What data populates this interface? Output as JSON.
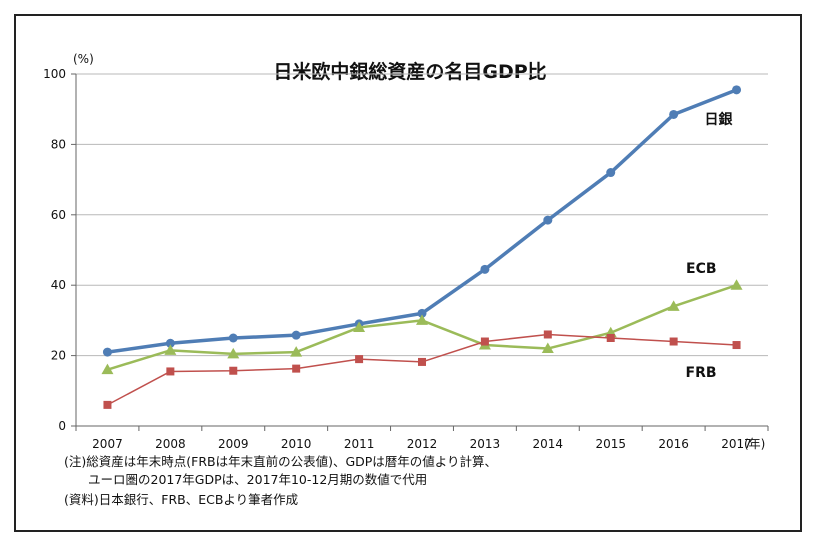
{
  "chart_data": {
    "type": "line",
    "title": "日米欧中銀総資産の名目GDP比",
    "ylabel": "(%)",
    "xlabel": "(年)",
    "ylim": [
      0,
      100
    ],
    "yticks": [
      0,
      20,
      40,
      60,
      80,
      100
    ],
    "x": [
      "2007",
      "2008",
      "2009",
      "2010",
      "2011",
      "2012",
      "2013",
      "2014",
      "2015",
      "2016",
      "2017"
    ],
    "grid": true,
    "legend": "inline labels at right end of series",
    "series": [
      {
        "name": "日銀",
        "color": "#4f7db5",
        "marker": "circle",
        "values": [
          21,
          23.5,
          25,
          25.8,
          29,
          32,
          44.5,
          58.5,
          72,
          88.5,
          95.5
        ]
      },
      {
        "name": "ECB",
        "color": "#9bbb59",
        "marker": "triangle",
        "values": [
          16,
          21.5,
          20.5,
          21,
          28,
          30,
          23,
          22,
          26.5,
          34,
          40
        ]
      },
      {
        "name": "FRB",
        "color": "#c0504d",
        "marker": "square",
        "values": [
          6,
          15.5,
          15.7,
          16.3,
          19,
          18.2,
          24,
          26,
          25,
          24,
          23
        ]
      }
    ]
  },
  "notes": {
    "line1": "(注)総資産は年末時点(FRBは年末直前の公表値)、GDPは暦年の値より計算、",
    "line2": "ユーロ圏の2017年GDPは、2017年10-12月期の数値で代用",
    "line3": "(資料)日本銀行、FRB、ECBより筆者作成"
  }
}
